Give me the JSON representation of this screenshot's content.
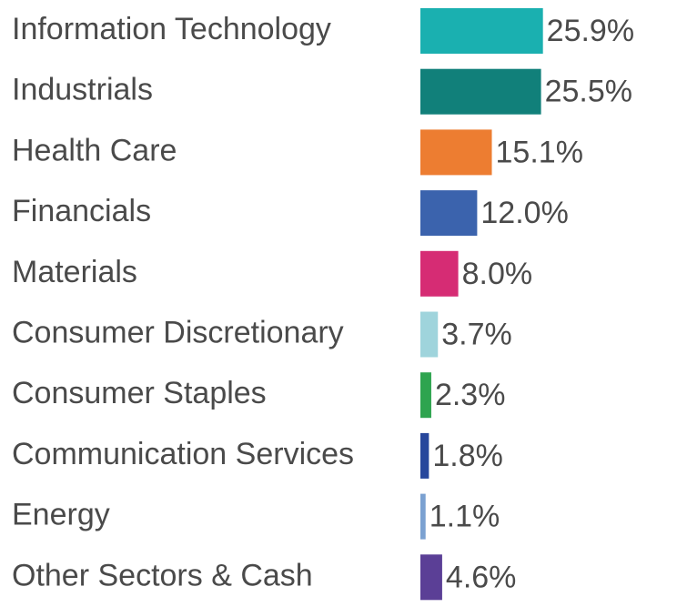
{
  "chart_data": {
    "type": "barh",
    "categories": [
      "Information Technology",
      "Industrials",
      "Health Care",
      "Financials",
      "Materials",
      "Consumer Discretionary",
      "Consumer Staples",
      "Communication Services",
      "Energy",
      "Other Sectors & Cash"
    ],
    "values": [
      25.9,
      25.5,
      15.1,
      12.0,
      8.0,
      3.7,
      2.3,
      1.8,
      1.1,
      4.6
    ],
    "value_labels": [
      "25.9%",
      "25.5%",
      "15.1%",
      "12.0%",
      "8.0%",
      "3.7%",
      "2.3%",
      "1.8%",
      "1.1%",
      "4.6%"
    ],
    "colors": [
      "#1ab0b0",
      "#11807a",
      "#ed7d31",
      "#3b63ad",
      "#d62c74",
      "#9fd4dc",
      "#2ea44f",
      "#27479c",
      "#7ba1d1",
      "#5b3f96"
    ]
  }
}
